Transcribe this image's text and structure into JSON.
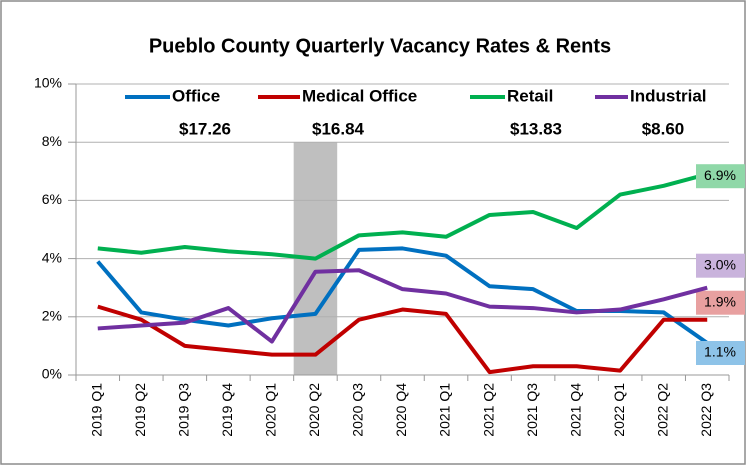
{
  "chart_data": {
    "type": "line",
    "title": "Pueblo County Quarterly Vacancy Rates & Rents",
    "categories": [
      "2019 Q1",
      "2019 Q2",
      "2019 Q3",
      "2019 Q4",
      "2020 Q1",
      "2020 Q2",
      "2020 Q3",
      "2020 Q4",
      "2021 Q1",
      "2021 Q2",
      "2021 Q3",
      "2021 Q4",
      "2022 Q1",
      "2022 Q2",
      "2022 Q3"
    ],
    "highlight": "2020 Q2",
    "series": [
      {
        "name": "Office",
        "color": "#0070c0",
        "label_color": "#8ec3e8",
        "rent": "$17.26",
        "values": [
          3.9,
          2.15,
          1.9,
          1.7,
          1.95,
          2.1,
          4.3,
          4.35,
          4.1,
          3.05,
          2.95,
          2.2,
          2.2,
          2.15,
          1.1
        ],
        "value_labels": {
          "14": "1.1%"
        }
      },
      {
        "name": "Medical Office",
        "color": "#c00000",
        "label_color": "#e8a0a0",
        "rent": "$16.84",
        "values": [
          2.35,
          1.9,
          1.0,
          0.85,
          0.7,
          0.7,
          1.9,
          2.25,
          2.1,
          0.1,
          0.3,
          0.3,
          0.15,
          1.9,
          1.9
        ],
        "value_labels": {
          "14": "1.9%"
        }
      },
      {
        "name": "Retail",
        "color": "#00b050",
        "label_color": "#8fd8a8",
        "rent": "$13.83",
        "values": [
          4.35,
          4.2,
          4.4,
          4.25,
          4.15,
          4.0,
          4.8,
          4.9,
          4.75,
          5.5,
          5.6,
          5.05,
          6.2,
          6.5,
          6.9
        ],
        "value_labels": {
          "14": "6.9%"
        }
      },
      {
        "name": "Industrial",
        "color": "#7030a0",
        "label_color": "#c9b3dc",
        "rent": "$8.60",
        "values": [
          1.6,
          1.7,
          1.8,
          2.3,
          1.15,
          3.55,
          3.6,
          2.95,
          2.8,
          2.35,
          2.3,
          2.15,
          2.25,
          2.6,
          3.0
        ],
        "value_labels": {
          "14": "3.0%"
        }
      }
    ],
    "ylim": [
      0,
      10
    ],
    "yticks": [
      {
        "value": 0,
        "label": "0%"
      },
      {
        "value": 2,
        "label": "2%"
      },
      {
        "value": 4,
        "label": "4%"
      },
      {
        "value": 6,
        "label": "6%"
      },
      {
        "value": 8,
        "label": "8%"
      },
      {
        "value": 10,
        "label": "10%"
      }
    ],
    "grid": true
  }
}
